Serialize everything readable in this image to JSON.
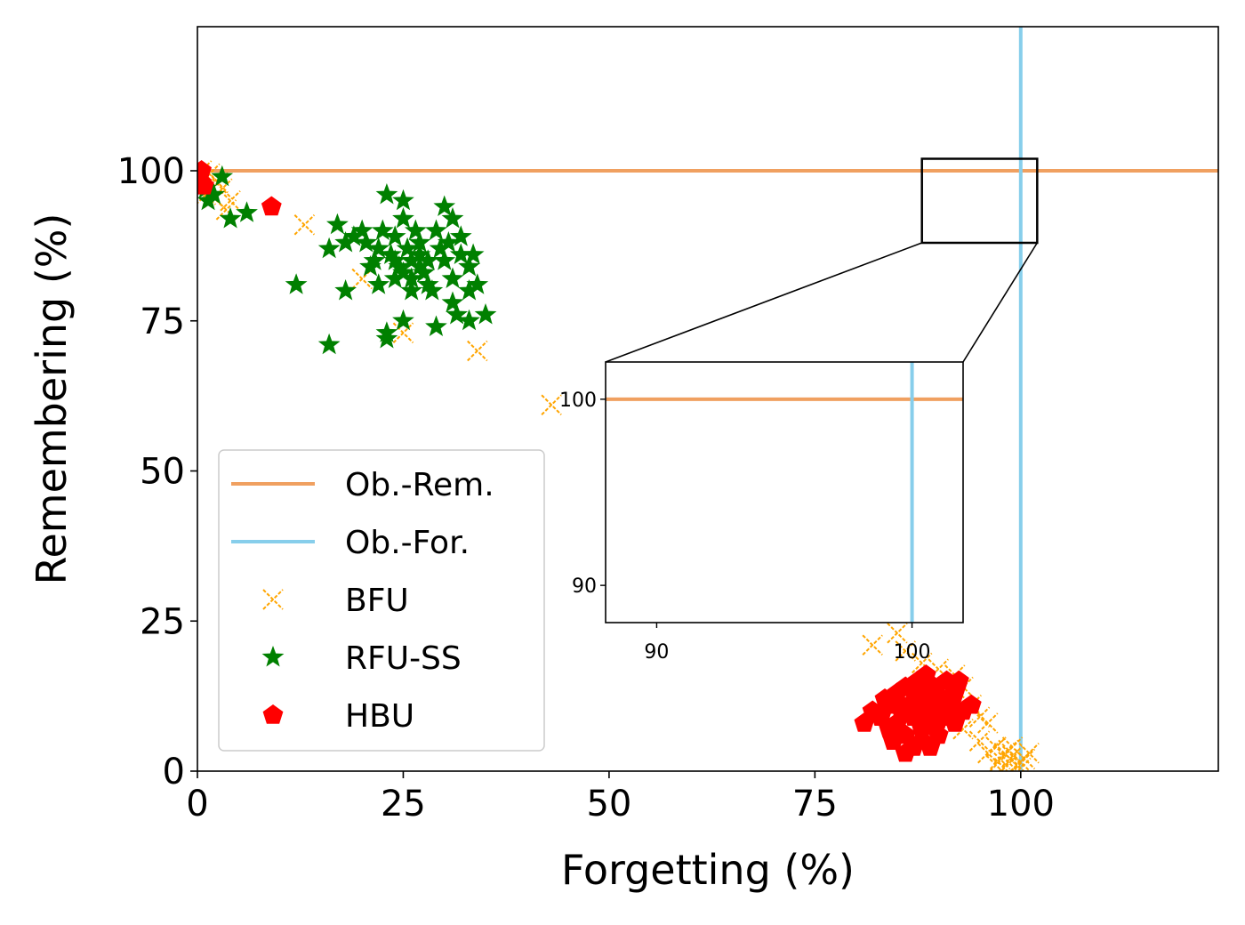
{
  "chart_data": {
    "type": "scatter",
    "xlabel": "Forgetting (%)",
    "ylabel": "Remembering (%)",
    "xlim": [
      0,
      124
    ],
    "ylim": [
      0,
      124
    ],
    "xticks": [
      0,
      25,
      50,
      75,
      100
    ],
    "yticks": [
      0,
      25,
      50,
      75,
      100
    ],
    "grid": false,
    "legend_position": "lower-left",
    "reference_lines": [
      {
        "name": "Ob.-Rem.",
        "orientation": "horizontal",
        "value": 100,
        "color": "#f0a060"
      },
      {
        "name": "Ob.-For.",
        "orientation": "vertical",
        "value": 100,
        "color": "#87ceeb"
      }
    ],
    "series": [
      {
        "name": "BFU",
        "marker": "x",
        "color": "#ffa500",
        "points": [
          [
            0.5,
            100
          ],
          [
            1.5,
            99.5
          ],
          [
            2.5,
            98
          ],
          [
            3,
            97
          ],
          [
            2,
            95.5
          ],
          [
            4,
            95
          ],
          [
            3.5,
            93.5
          ],
          [
            1,
            96
          ],
          [
            13,
            91
          ],
          [
            20,
            82
          ],
          [
            25,
            73
          ],
          [
            34,
            70
          ],
          [
            43,
            61
          ],
          [
            82,
            21
          ],
          [
            85,
            23
          ],
          [
            86,
            20
          ],
          [
            88,
            18
          ],
          [
            90,
            17
          ],
          [
            92,
            16
          ],
          [
            93,
            14
          ],
          [
            94,
            11
          ],
          [
            95,
            9
          ],
          [
            96,
            8
          ],
          [
            93,
            7
          ],
          [
            95,
            5
          ],
          [
            97,
            4
          ],
          [
            96,
            3
          ],
          [
            98,
            3
          ],
          [
            97.5,
            2
          ],
          [
            98.5,
            1.5
          ],
          [
            99,
            2.5
          ],
          [
            99.5,
            1
          ],
          [
            98,
            0.5
          ],
          [
            97,
            1
          ],
          [
            100,
            0.5
          ],
          [
            100.5,
            2
          ],
          [
            99,
            4
          ],
          [
            101,
            3
          ],
          [
            100,
            1.5
          ],
          [
            98.5,
            3.5
          ]
        ]
      },
      {
        "name": "RFU-SS",
        "marker": "star",
        "color": "#008000",
        "points": [
          [
            1,
            97
          ],
          [
            2,
            96
          ],
          [
            1.3,
            95
          ],
          [
            3,
            99
          ],
          [
            4,
            92
          ],
          [
            6,
            93
          ],
          [
            12,
            81
          ],
          [
            16,
            71
          ],
          [
            16,
            87
          ],
          [
            17,
            91
          ],
          [
            18,
            88
          ],
          [
            18,
            80
          ],
          [
            19,
            89
          ],
          [
            20,
            90
          ],
          [
            20.5,
            88
          ],
          [
            21,
            84
          ],
          [
            21.5,
            85
          ],
          [
            22,
            87
          ],
          [
            22,
            81
          ],
          [
            23,
            96
          ],
          [
            23,
            73
          ],
          [
            23,
            72
          ],
          [
            23.5,
            86
          ],
          [
            24,
            85
          ],
          [
            24,
            89
          ],
          [
            24.5,
            84
          ],
          [
            25,
            92
          ],
          [
            25,
            95
          ],
          [
            25,
            75
          ],
          [
            25,
            83
          ],
          [
            25.5,
            87
          ],
          [
            26,
            82
          ],
          [
            26,
            85
          ],
          [
            26.5,
            90
          ],
          [
            27,
            84
          ],
          [
            27,
            86
          ],
          [
            27.5,
            83
          ],
          [
            28,
            85
          ],
          [
            28,
            81
          ],
          [
            28.5,
            80
          ],
          [
            29,
            90
          ],
          [
            29,
            74
          ],
          [
            29.5,
            87
          ],
          [
            30,
            94
          ],
          [
            30,
            85
          ],
          [
            30.5,
            88
          ],
          [
            31,
            92
          ],
          [
            31,
            82
          ],
          [
            31,
            78
          ],
          [
            31.5,
            76
          ],
          [
            32,
            89
          ],
          [
            32,
            86
          ],
          [
            33,
            80
          ],
          [
            33,
            75
          ],
          [
            33,
            84
          ],
          [
            33.5,
            86
          ],
          [
            34,
            81
          ],
          [
            35,
            76
          ],
          [
            26,
            80
          ],
          [
            24,
            82
          ],
          [
            22.5,
            90
          ],
          [
            27,
            88
          ]
        ]
      },
      {
        "name": "HBU",
        "marker": "pentagon",
        "color": "#ff0000",
        "points": [
          [
            0.5,
            98
          ],
          [
            0.5,
            100
          ],
          [
            0.8,
            97.5
          ],
          [
            9,
            94
          ],
          [
            81,
            8
          ],
          [
            82,
            10
          ],
          [
            83,
            9
          ],
          [
            83.5,
            12
          ],
          [
            84,
            7
          ],
          [
            84,
            11
          ],
          [
            85,
            13
          ],
          [
            85,
            8
          ],
          [
            85.5,
            10
          ],
          [
            86,
            14
          ],
          [
            86,
            6
          ],
          [
            86.5,
            11
          ],
          [
            87,
            4
          ],
          [
            87,
            9
          ],
          [
            87.5,
            15
          ],
          [
            87.5,
            12
          ],
          [
            88,
            7
          ],
          [
            88,
            10
          ],
          [
            88.5,
            16
          ],
          [
            88.5,
            13
          ],
          [
            89,
            4
          ],
          [
            89,
            8
          ],
          [
            89,
            11
          ],
          [
            89.5,
            14
          ],
          [
            90,
            6
          ],
          [
            90,
            10
          ],
          [
            90.5,
            12
          ],
          [
            91,
            9
          ],
          [
            91,
            15
          ],
          [
            91.5,
            11
          ],
          [
            92,
            8
          ],
          [
            92,
            13
          ],
          [
            92.5,
            15
          ],
          [
            93,
            10
          ],
          [
            94,
            11
          ],
          [
            84.5,
            5
          ],
          [
            86,
            3
          ],
          [
            88,
            5
          ],
          [
            90,
            8.5
          ],
          [
            87,
            13
          ],
          [
            85,
            11.5
          ]
        ]
      }
    ],
    "zoom_box": {
      "x": [
        88,
        102
      ],
      "y": [
        88,
        102
      ]
    },
    "inset": {
      "xlim": [
        88,
        102
      ],
      "ylim": [
        88,
        102
      ],
      "xticks": [
        90,
        100
      ],
      "yticks": [
        90,
        100
      ]
    }
  }
}
